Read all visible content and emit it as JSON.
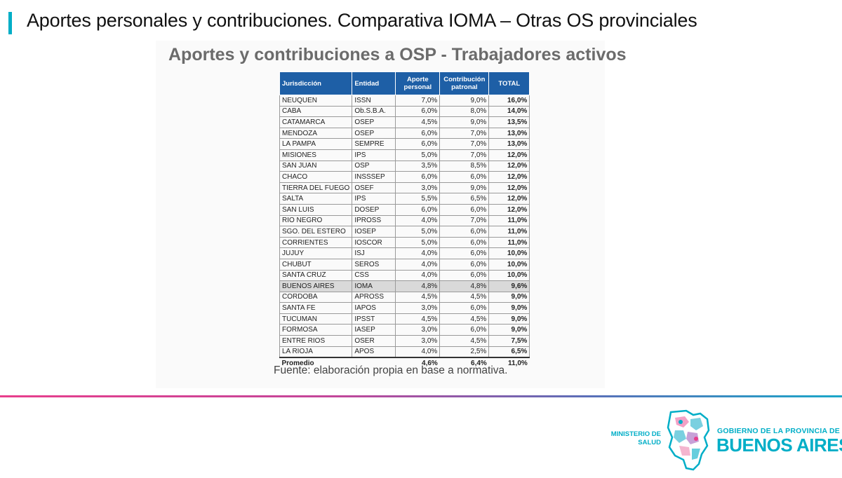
{
  "page": {
    "title": "Aportes personales y contribuciones. Comparativa IOMA – Otras OS provinciales"
  },
  "table": {
    "heading": "Aportes y contribuciones a OSP - Trabajadores activos",
    "headers": {
      "jurisdiccion": "Jurisdicción",
      "entidad": "Entidad",
      "aporte_line1": "Aporte",
      "aporte_line2": "personal",
      "contribucion_line1": "Contribución",
      "contribucion_line2": "patronal",
      "total": "TOTAL"
    },
    "rows": [
      {
        "jurisdiccion": "NEUQUEN",
        "entidad": "ISSN",
        "aporte": "7,0%",
        "contribucion": "9,0%",
        "total": "16,0%"
      },
      {
        "jurisdiccion": "CABA",
        "entidad": "Ob.S.B.A.",
        "aporte": "6,0%",
        "contribucion": "8,0%",
        "total": "14,0%"
      },
      {
        "jurisdiccion": "CATAMARCA",
        "entidad": "OSEP",
        "aporte": "4,5%",
        "contribucion": "9,0%",
        "total": "13,5%"
      },
      {
        "jurisdiccion": "MENDOZA",
        "entidad": "OSEP",
        "aporte": "6,0%",
        "contribucion": "7,0%",
        "total": "13,0%"
      },
      {
        "jurisdiccion": "LA PAMPA",
        "entidad": "SEMPRE",
        "aporte": "6,0%",
        "contribucion": "7,0%",
        "total": "13,0%"
      },
      {
        "jurisdiccion": "MISIONES",
        "entidad": "IPS",
        "aporte": "5,0%",
        "contribucion": "7,0%",
        "total": "12,0%"
      },
      {
        "jurisdiccion": "SAN JUAN",
        "entidad": "OSP",
        "aporte": "3,5%",
        "contribucion": "8,5%",
        "total": "12,0%"
      },
      {
        "jurisdiccion": "CHACO",
        "entidad": "INSSSEP",
        "aporte": "6,0%",
        "contribucion": "6,0%",
        "total": "12,0%"
      },
      {
        "jurisdiccion": "TIERRA DEL FUEGO",
        "entidad": "OSEF",
        "aporte": "3,0%",
        "contribucion": "9,0%",
        "total": "12,0%"
      },
      {
        "jurisdiccion": "SALTA",
        "entidad": "IPS",
        "aporte": "5,5%",
        "contribucion": "6,5%",
        "total": "12,0%"
      },
      {
        "jurisdiccion": "SAN LUIS",
        "entidad": "DOSEP",
        "aporte": "6,0%",
        "contribucion": "6,0%",
        "total": "12,0%"
      },
      {
        "jurisdiccion": "RIO NEGRO",
        "entidad": "IPROSS",
        "aporte": "4,0%",
        "contribucion": "7,0%",
        "total": "11,0%"
      },
      {
        "jurisdiccion": "SGO. DEL ESTERO",
        "entidad": "IOSEP",
        "aporte": "5,0%",
        "contribucion": "6,0%",
        "total": "11,0%"
      },
      {
        "jurisdiccion": "CORRIENTES",
        "entidad": "IOSCOR",
        "aporte": "5,0%",
        "contribucion": "6,0%",
        "total": "11,0%"
      },
      {
        "jurisdiccion": "JUJUY",
        "entidad": "ISJ",
        "aporte": "4,0%",
        "contribucion": "6,0%",
        "total": "10,0%"
      },
      {
        "jurisdiccion": "CHUBUT",
        "entidad": "SEROS",
        "aporte": "4,0%",
        "contribucion": "6,0%",
        "total": "10,0%"
      },
      {
        "jurisdiccion": "SANTA CRUZ",
        "entidad": "CSS",
        "aporte": "4,0%",
        "contribucion": "6,0%",
        "total": "10,0%"
      },
      {
        "jurisdiccion": "BUENOS AIRES",
        "entidad": "IOMA",
        "aporte": "4,8%",
        "contribucion": "4,8%",
        "total": "9,6%",
        "highlight": true
      },
      {
        "jurisdiccion": "CORDOBA",
        "entidad": "APROSS",
        "aporte": "4,5%",
        "contribucion": "4,5%",
        "total": "9,0%"
      },
      {
        "jurisdiccion": "SANTA FE",
        "entidad": "IAPOS",
        "aporte": "3,0%",
        "contribucion": "6,0%",
        "total": "9,0%"
      },
      {
        "jurisdiccion": "TUCUMAN",
        "entidad": "IPSST",
        "aporte": "4,5%",
        "contribucion": "4,5%",
        "total": "9,0%"
      },
      {
        "jurisdiccion": "FORMOSA",
        "entidad": "IASEP",
        "aporte": "3,0%",
        "contribucion": "6,0%",
        "total": "9,0%"
      },
      {
        "jurisdiccion": "ENTRE RIOS",
        "entidad": "OSER",
        "aporte": "3,0%",
        "contribucion": "4,5%",
        "total": "7,5%"
      },
      {
        "jurisdiccion": "LA RIOJA",
        "entidad": "APOS",
        "aporte": "4,0%",
        "contribucion": "2,5%",
        "total": "6,5%"
      }
    ],
    "average": {
      "label": "Promedio",
      "aporte": "4,6%",
      "contribucion": "6,4%",
      "total": "11,0%"
    },
    "source": "Fuente: elaboración propia en base a normativa."
  },
  "footer": {
    "ministry_line1": "MINISTERIO DE",
    "ministry_line2": "SALUD",
    "gov_line1": "GOBIERNO DE LA PROVINCIA DE",
    "gov_line2": "BUENOS AIRES"
  },
  "colors": {
    "accent": "#00aec7",
    "header_blue": "#1e5fa6",
    "highlight_row": "#d9d9d9"
  }
}
